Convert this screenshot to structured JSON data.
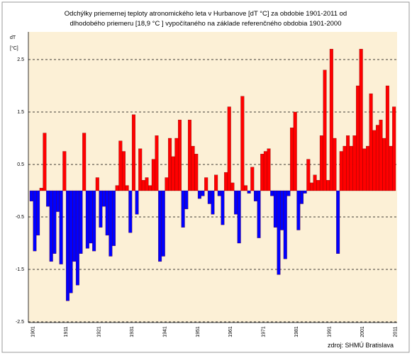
{
  "chart_data": {
    "type": "bar",
    "title": [
      "Odchýlky priemernej teploty atronomického leta  v Hurbanove [dT °C] za obdobie 1901-2011 od",
      "dlhodobého priemeru [18,9 °C ] vypočítaného na základe referenčného obdobia 1901-2000"
    ],
    "y_label": "dT",
    "y_unit": "[°C]",
    "source": "zdroj: SHMÚ Bratislava",
    "categories": [
      "1901",
      null,
      null,
      null,
      null,
      null,
      null,
      null,
      null,
      null,
      "1911",
      null,
      null,
      null,
      null,
      null,
      null,
      null,
      null,
      null,
      "1921",
      null,
      null,
      null,
      null,
      null,
      null,
      null,
      null,
      null,
      "1931",
      null,
      null,
      null,
      null,
      null,
      null,
      null,
      null,
      null,
      "1941",
      null,
      null,
      null,
      null,
      null,
      null,
      null,
      null,
      null,
      "1951",
      null,
      null,
      null,
      null,
      null,
      null,
      null,
      null,
      null,
      "1961",
      null,
      null,
      null,
      null,
      null,
      null,
      null,
      null,
      null,
      "1971",
      null,
      null,
      null,
      null,
      null,
      null,
      null,
      null,
      null,
      "1981",
      null,
      null,
      null,
      null,
      null,
      null,
      null,
      null,
      null,
      "1991",
      null,
      null,
      null,
      null,
      null,
      null,
      null,
      null,
      null,
      "2001",
      null,
      null,
      null,
      null,
      null,
      null,
      null,
      null,
      null,
      "2011"
    ],
    "values": [
      -0.2,
      -1.15,
      -0.85,
      0.05,
      1.1,
      -0.3,
      -1.35,
      -1.2,
      -0.4,
      -1.4,
      0.75,
      -2.1,
      -1.95,
      -1.35,
      -1.8,
      -1.2,
      1.1,
      -1.1,
      -1.0,
      -1.15,
      0.25,
      -0.7,
      -0.3,
      -0.85,
      -1.25,
      -1.05,
      0.1,
      0.95,
      0.75,
      0.1,
      -0.8,
      1.45,
      -0.45,
      0.8,
      0.2,
      0.25,
      0.1,
      0.6,
      1.05,
      -1.35,
      -1.25,
      0.25,
      1.0,
      0.65,
      1.0,
      1.35,
      -0.7,
      -0.35,
      1.35,
      0.85,
      0.7,
      -0.15,
      -0.1,
      0.25,
      -0.25,
      -0.45,
      0.3,
      -0.1,
      -0.65,
      0.35,
      1.6,
      0.15,
      -0.45,
      -1.0,
      1.8,
      0.1,
      -0.05,
      0.45,
      -0.2,
      -0.9,
      0.7,
      0.75,
      0.8,
      -0.1,
      -0.7,
      -1.6,
      -0.75,
      -1.3,
      -0.1,
      1.2,
      1.5,
      -0.75,
      -0.25,
      -0.05,
      0.6,
      0.15,
      0.3,
      0.2,
      1.05,
      2.3,
      0.2,
      2.7,
      1.0,
      -1.2,
      0.75,
      0.85,
      1.05,
      0.85,
      1.05,
      2.0,
      2.7,
      0.8,
      0.85,
      1.85,
      1.15,
      1.25,
      1.35,
      1.0,
      2.0,
      0.85,
      1.6
    ],
    "color_above": "#ff0000",
    "color_below": "#0000ff",
    "ylim": [
      -2.5,
      3
    ],
    "yticks": [
      -2.5,
      -1.5,
      -0.5,
      0.5,
      1.5,
      2.5
    ],
    "grid": true
  }
}
